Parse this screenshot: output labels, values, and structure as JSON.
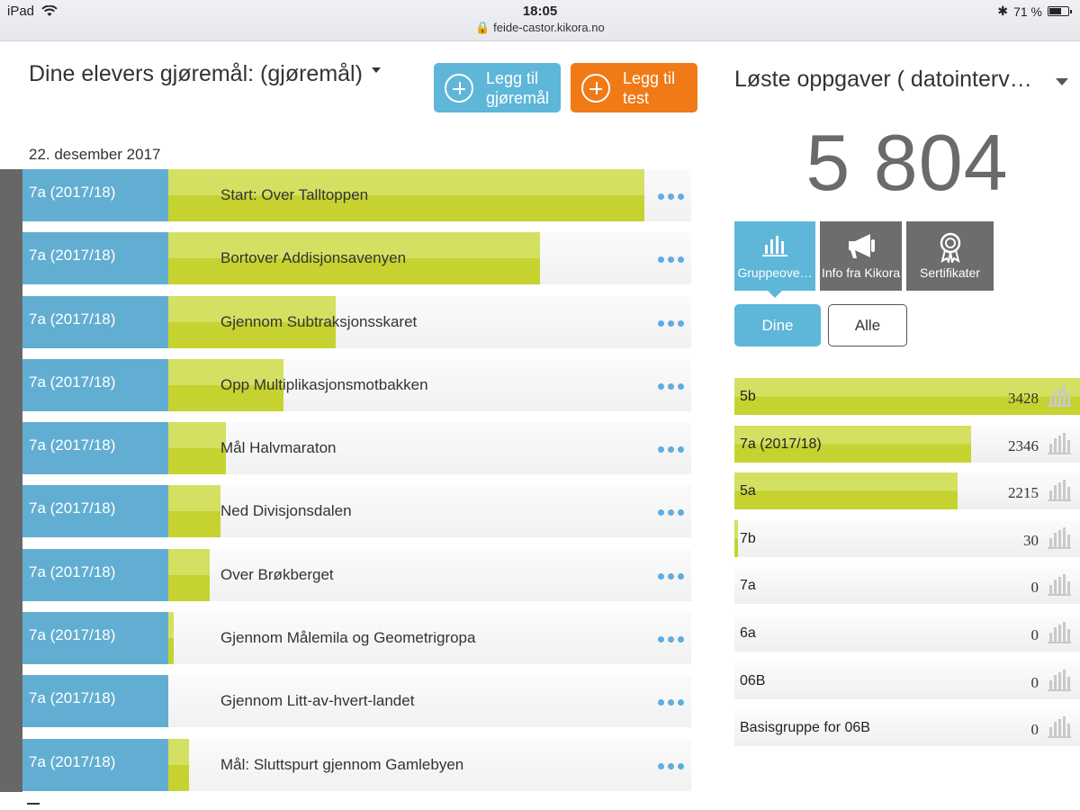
{
  "status_bar": {
    "device": "iPad",
    "time": "18:05",
    "url": "feide-castor.kikora.no",
    "battery": "71 %",
    "battery_level": 0.71
  },
  "header": {
    "title": "Dine elevers gjøremål: (gjøremål)",
    "add_task_button": "Legg til gjøremål",
    "add_test_button": "Legg til test"
  },
  "date_heading": "22. desember 2017",
  "tasks": [
    {
      "group": "7a (2017/18)",
      "name": "Start: Over Talltoppen",
      "progress": 0.91
    },
    {
      "group": "7a (2017/18)",
      "name": "Bortover Addisjonsavenyen",
      "progress": 0.71
    },
    {
      "group": "7a (2017/18)",
      "name": "Gjennom Subtraksjonsskaret",
      "progress": 0.32
    },
    {
      "group": "7a (2017/18)",
      "name": "Opp Multiplikasjonsmotbakken",
      "progress": 0.22
    },
    {
      "group": "7a (2017/18)",
      "name": "Mål Halvmaraton",
      "progress": 0.11
    },
    {
      "group": "7a (2017/18)",
      "name": "Ned Divisjonsdalen",
      "progress": 0.1
    },
    {
      "group": "7a (2017/18)",
      "name": "Over Brøkberget",
      "progress": 0.08
    },
    {
      "group": "7a (2017/18)",
      "name": "Gjennom Målemila og Geometrigropa",
      "progress": 0.01
    },
    {
      "group": "7a (2017/18)",
      "name": "Gjennom Litt-av-hvert-landet",
      "progress": 0.0
    },
    {
      "group": "7a (2017/18)",
      "name": "Mål: Sluttspurt gjennom Gamlebyen",
      "progress": 0.04
    }
  ],
  "right_panel": {
    "title": "Løste oppgaver ( datointerv…",
    "total": "5 804",
    "tiles": {
      "groups": "Gruppeove…",
      "info": "Info fra Kikora",
      "certificates": "Sertifikater"
    },
    "segment": {
      "mine": "Dine",
      "all": "Alle"
    },
    "groups": [
      {
        "name": "5b",
        "count": "3428",
        "fraction": 1.0
      },
      {
        "name": "7a (2017/18)",
        "count": "2346",
        "fraction": 0.684
      },
      {
        "name": "5a",
        "count": "2215",
        "fraction": 0.646
      },
      {
        "name": "7b",
        "count": "30",
        "fraction": 0.009
      },
      {
        "name": "7a",
        "count": "0",
        "fraction": 0
      },
      {
        "name": "6a",
        "count": "0",
        "fraction": 0
      },
      {
        "name": "06B",
        "count": "0",
        "fraction": 0
      },
      {
        "name": "Basisgruppe for 06B",
        "count": "0",
        "fraction": 0
      }
    ]
  },
  "colors": {
    "accent_blue": "#5eb6d9",
    "accent_orange": "#f07a16",
    "progress_green": "#c6d230",
    "tile_gray": "#6d6d6d"
  }
}
